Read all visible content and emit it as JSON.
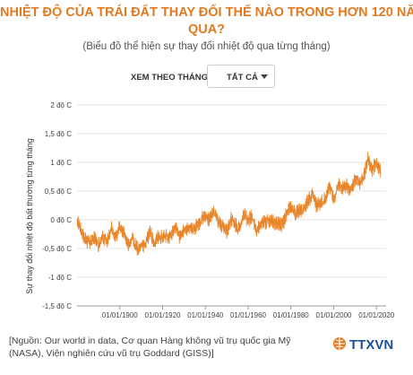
{
  "header": {
    "title_line1": "NHIỆT ĐỘ CỦA TRÁI ĐẤT THAY ĐỔI THẾ NÀO TRONG HƠN 120 NĂM",
    "title_line2": "QUA?",
    "subtitle": "(Biểu đồ thể hiện sự thay đổi nhiệt độ qua từng tháng)"
  },
  "filter": {
    "label": "XEM THEO THÁNG",
    "value": "TẤT CẢ"
  },
  "footer": {
    "source_line1": "[Nguồn: Our world in data, Cơ quan Hàng không vũ trụ quốc gia Mỹ",
    "source_line2": "(NASA), Viện nghiên cứu vũ trụ Goddard (GISS)]",
    "logo_text": "TTXVN"
  },
  "colors": {
    "accent": "#e07b21",
    "line": "#e8862b",
    "grid": "#e6e6e6"
  },
  "chart_data": {
    "type": "line",
    "title": "NHIỆT ĐỘ CỦA TRÁI ĐẤT THAY ĐỔI THẾ NÀO TRONG HƠN 120 NĂM QUA?",
    "subtitle": "(Biểu đồ thể hiện sự thay đổi nhiệt độ qua từng tháng)",
    "ylabel": "Sự thay đổi nhiệt độ bất thường từng tháng",
    "xlabel": "",
    "ylim": [
      -1.5,
      2
    ],
    "xlim": [
      "1880-01-01",
      "2021-12-31"
    ],
    "grid": true,
    "y_ticks": [
      "-1,5 độ C",
      "-1 độ C",
      "-0,5 độ C",
      "0 độ C",
      "0,5 độ C",
      "1 độ C",
      "1,5 độ C",
      "2 độ C"
    ],
    "y_tick_values": [
      -1.5,
      -1,
      -0.5,
      0,
      0.5,
      1,
      1.5,
      2
    ],
    "x_ticks": [
      "01/01/1900",
      "01/01/1920",
      "01/01/1940",
      "01/01/1960",
      "01/01/1980",
      "01/01/2000",
      "01/01/2020"
    ],
    "x_tick_dates": [
      "1900-01-01",
      "1920-01-01",
      "1940-01-01",
      "1960-01-01",
      "1980-01-01",
      "2000-01-01",
      "2020-01-01"
    ],
    "series": [
      {
        "x": [
          "1880-01-01",
          "1882-01-01",
          "1884-01-01",
          "1886-01-01",
          "1888-01-01",
          "1890-01-01",
          "1892-01-01",
          "1894-01-01",
          "1896-01-01",
          "1898-01-01",
          "1900-01-01",
          "1902-01-01",
          "1904-01-01",
          "1906-01-01",
          "1908-01-01",
          "1910-01-01",
          "1912-01-01",
          "1914-01-01",
          "1916-01-01",
          "1918-01-01",
          "1920-01-01",
          "1922-01-01",
          "1924-01-01",
          "1926-01-01",
          "1928-01-01",
          "1930-01-01",
          "1932-01-01",
          "1934-01-01",
          "1936-01-01",
          "1938-01-01",
          "1940-01-01",
          "1942-01-01",
          "1944-01-01",
          "1946-01-01",
          "1948-01-01",
          "1950-01-01",
          "1952-01-01",
          "1954-01-01",
          "1956-01-01",
          "1958-01-01",
          "1960-01-01",
          "1962-01-01",
          "1964-01-01",
          "1966-01-01",
          "1968-01-01",
          "1970-01-01",
          "1972-01-01",
          "1974-01-01",
          "1976-01-01",
          "1978-01-01",
          "1980-01-01",
          "1982-01-01",
          "1984-01-01",
          "1986-01-01",
          "1988-01-01",
          "1990-01-01",
          "1992-01-01",
          "1994-01-01",
          "1996-01-01",
          "1998-01-01",
          "2000-01-01",
          "2002-01-01",
          "2004-01-01",
          "2006-01-01",
          "2008-01-01",
          "2010-01-01",
          "2012-01-01",
          "2014-01-01",
          "2016-01-01",
          "2018-01-01",
          "2020-01-01",
          "2021-12-01"
        ],
        "values": [
          0.02,
          -0.2,
          -0.35,
          -0.4,
          -0.3,
          -0.45,
          -0.3,
          -0.38,
          -0.15,
          -0.3,
          -0.1,
          -0.25,
          -0.45,
          -0.3,
          -0.5,
          -0.48,
          -0.45,
          -0.2,
          -0.4,
          -0.3,
          -0.3,
          -0.3,
          -0.28,
          -0.1,
          -0.3,
          -0.15,
          -0.15,
          -0.15,
          -0.1,
          0.0,
          0.05,
          0.0,
          0.15,
          -0.05,
          -0.1,
          -0.2,
          0.0,
          -0.1,
          -0.15,
          0.1,
          0.0,
          0.05,
          -0.2,
          -0.05,
          -0.05,
          0.0,
          -0.05,
          -0.05,
          -0.1,
          0.1,
          0.25,
          0.1,
          0.15,
          0.15,
          0.35,
          0.45,
          0.25,
          0.3,
          0.35,
          0.6,
          0.35,
          0.6,
          0.55,
          0.6,
          0.5,
          0.7,
          0.65,
          0.75,
          1.05,
          0.85,
          1.0,
          0.85
        ]
      }
    ]
  }
}
